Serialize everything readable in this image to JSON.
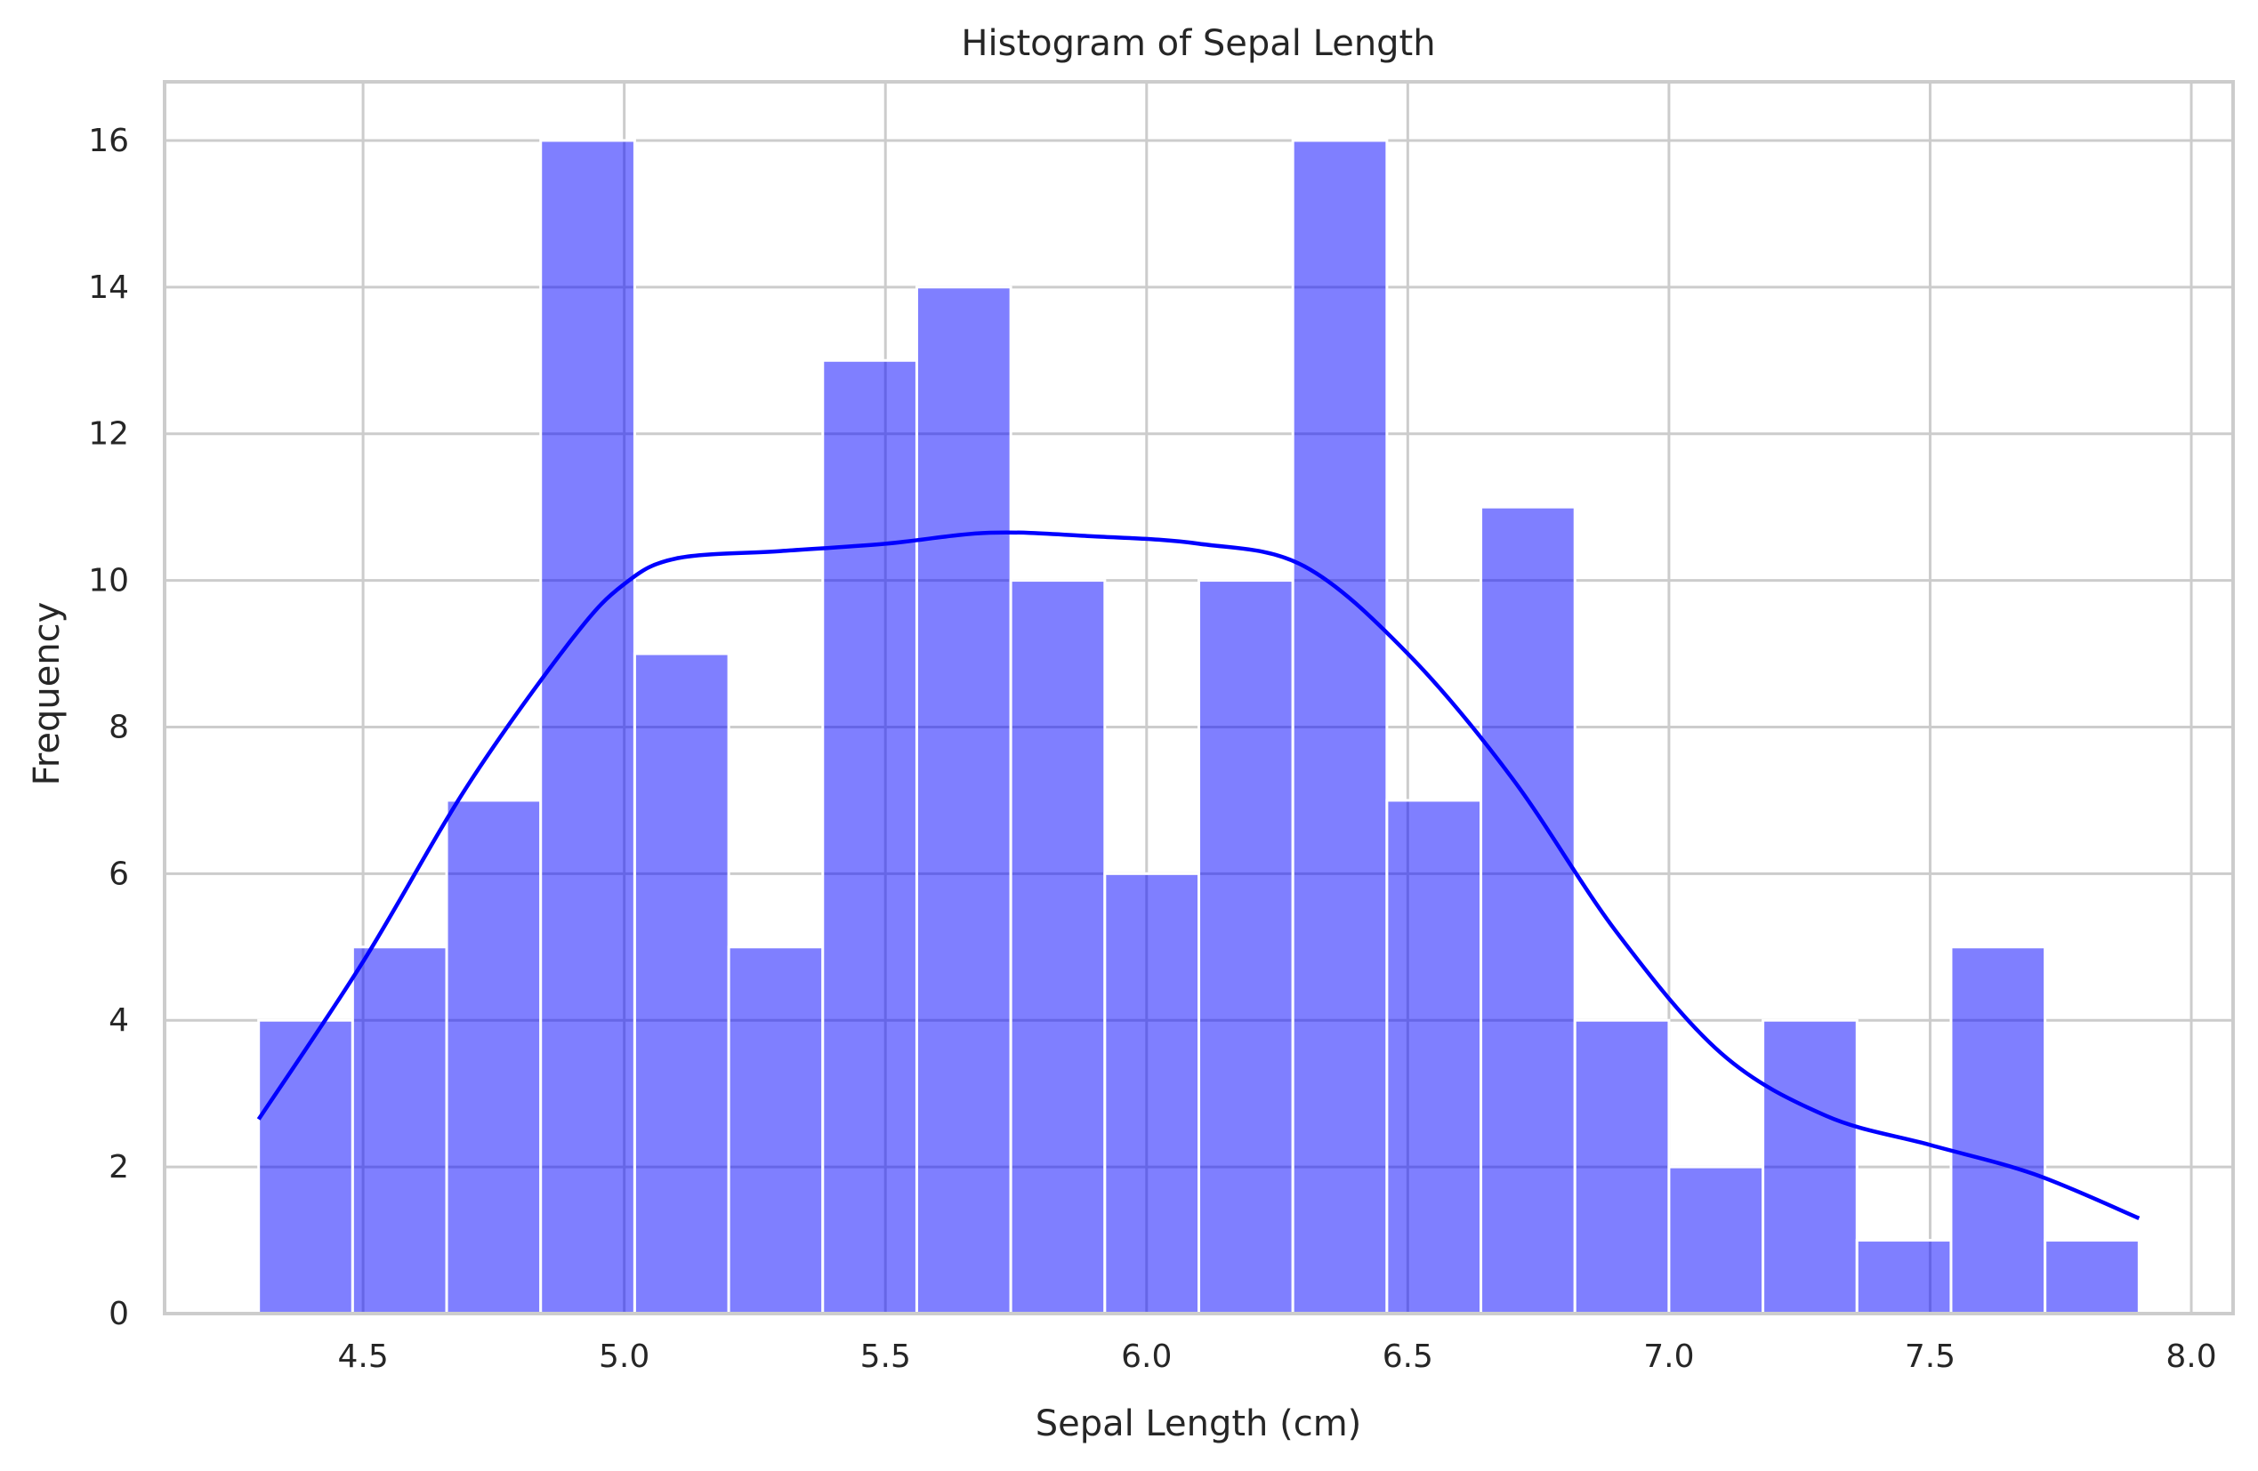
{
  "chart_data": {
    "type": "bar",
    "title": "Histogram of Sepal Length",
    "xlabel": "Sepal Length (cm)",
    "ylabel": "Frequency",
    "xlim": [
      4.12,
      8.08
    ],
    "ylim": [
      0,
      16.8
    ],
    "x_ticks": [
      "4.5",
      "5.0",
      "5.5",
      "6.0",
      "6.5",
      "7.0",
      "7.5",
      "8.0"
    ],
    "y_ticks": [
      "0",
      "2",
      "4",
      "6",
      "8",
      "10",
      "12",
      "14",
      "16"
    ],
    "grid": true,
    "bin_edges": [
      4.3,
      4.48,
      4.66,
      4.84,
      5.02,
      5.2,
      5.38,
      5.56,
      5.74,
      5.92,
      6.1,
      6.28,
      6.46,
      6.64,
      6.82,
      7.0,
      7.18,
      7.36,
      7.54,
      7.72,
      7.9
    ],
    "counts": [
      4,
      5,
      7,
      16,
      9,
      5,
      13,
      14,
      10,
      6,
      10,
      16,
      7,
      11,
      4,
      2,
      4,
      1,
      5,
      1
    ],
    "bar_color": "#0000ff",
    "kde": {
      "color": "#0000ff",
      "x": [
        4.3,
        4.5,
        4.7,
        4.9,
        5.0,
        5.1,
        5.3,
        5.5,
        5.7,
        5.9,
        6.1,
        6.3,
        6.5,
        6.7,
        6.9,
        7.1,
        7.3,
        7.5,
        7.7,
        7.9
      ],
      "y": [
        2.65,
        4.8,
        7.2,
        9.2,
        9.95,
        10.3,
        10.4,
        10.5,
        10.65,
        10.6,
        10.5,
        10.2,
        9.0,
        7.3,
        5.2,
        3.55,
        2.7,
        2.3,
        1.9,
        1.3
      ]
    }
  }
}
